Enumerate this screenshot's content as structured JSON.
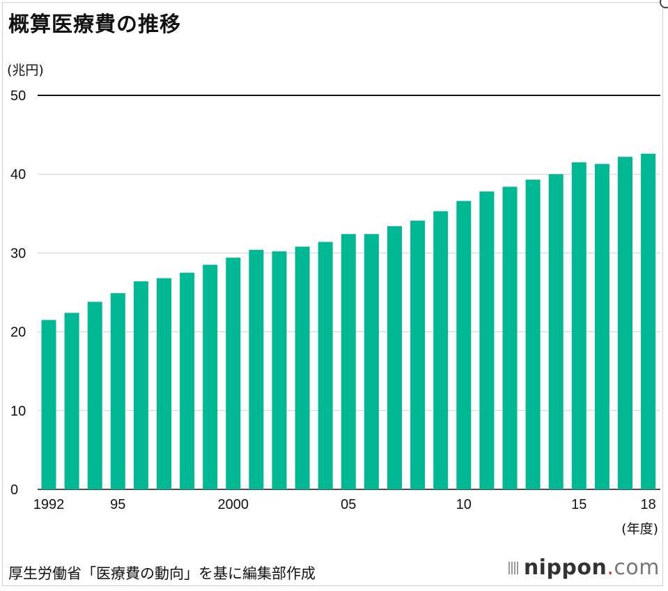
{
  "chart_data": {
    "type": "bar",
    "title": "概算医療費の推移",
    "ylabel": "(兆円)",
    "xlabel": "(年度)",
    "categories": [
      "1992",
      "1993",
      "1994",
      "1995",
      "1996",
      "1997",
      "1998",
      "1999",
      "2000",
      "2001",
      "2002",
      "2003",
      "2004",
      "2005",
      "2006",
      "2007",
      "2008",
      "2009",
      "2010",
      "2011",
      "2012",
      "2013",
      "2014",
      "2015",
      "2016",
      "2017",
      "2018"
    ],
    "values": [
      21.5,
      22.4,
      23.8,
      24.9,
      26.4,
      26.8,
      27.5,
      28.5,
      29.4,
      30.4,
      30.2,
      30.8,
      31.4,
      32.4,
      32.4,
      33.4,
      34.1,
      35.3,
      36.6,
      37.8,
      38.4,
      39.3,
      40.0,
      41.5,
      41.3,
      42.2,
      42.6
    ],
    "x_tick_labels": [
      {
        "index": 0,
        "label": "1992"
      },
      {
        "index": 3,
        "label": "95"
      },
      {
        "index": 8,
        "label": "2000"
      },
      {
        "index": 13,
        "label": "05"
      },
      {
        "index": 18,
        "label": "10"
      },
      {
        "index": 23,
        "label": "15"
      },
      {
        "index": 26,
        "label": "18"
      }
    ],
    "y_ticks": [
      0,
      10,
      20,
      30,
      40,
      50
    ],
    "ylim": [
      0,
      50
    ],
    "grid": true,
    "bar_color": "#00b894",
    "grid_color": "#d0d0d0",
    "top_line_color": "#111111"
  },
  "source": "厚生労働省「医療費の動向」を基に編集部作成",
  "logo": {
    "name": "nippon",
    "dot": ".",
    "suffix": "com"
  }
}
